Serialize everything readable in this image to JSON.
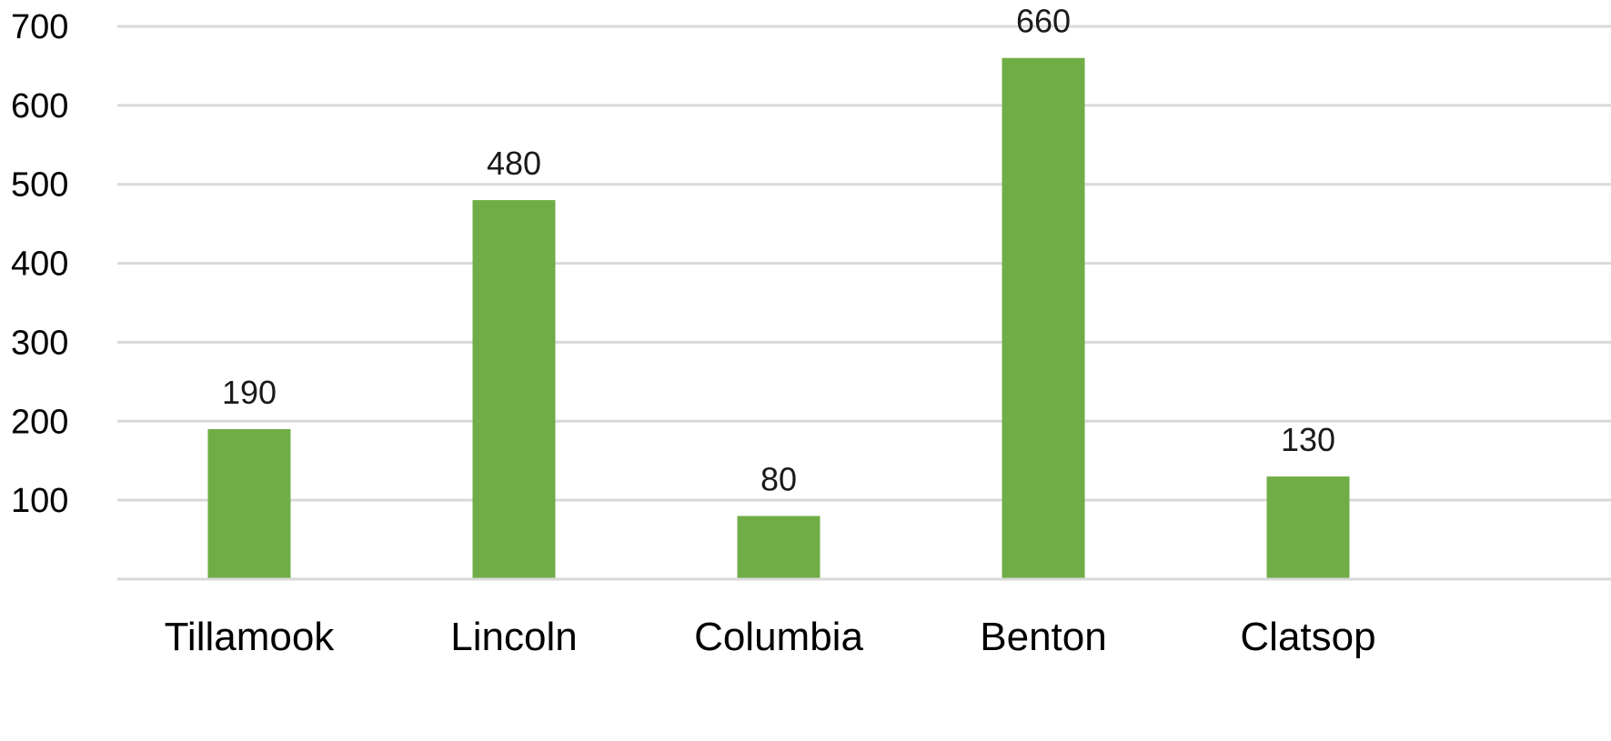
{
  "chart_data": {
    "type": "bar",
    "title": "",
    "xlabel": "",
    "ylabel": "",
    "categories": [
      "Tillamook",
      "Lincoln",
      "Columbia",
      "Benton",
      "Clatsop"
    ],
    "values": [
      190,
      480,
      80,
      660,
      130
    ],
    "data_labels": [
      "190",
      "480",
      "80",
      "660",
      "130"
    ],
    "y_ticks": [
      100,
      200,
      300,
      400,
      500,
      600,
      700
    ],
    "y_tick_labels": [
      "100",
      "200",
      "300",
      "400",
      "500",
      "600",
      "700"
    ],
    "ylim": [
      0,
      700
    ],
    "grid": true,
    "legend": "none",
    "colors": {
      "bar": "#70AD47",
      "grid": "#D9D9D9",
      "axis": "#D9D9D9"
    }
  }
}
